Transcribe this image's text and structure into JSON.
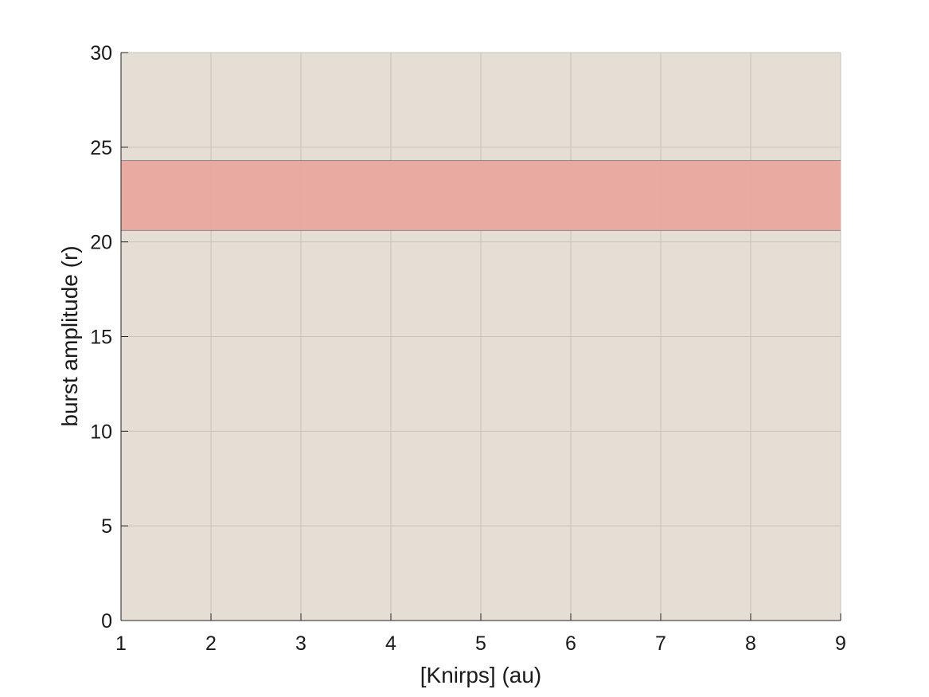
{
  "chart_data": {
    "type": "area",
    "title": "",
    "xlabel": "[Knirps] (au)",
    "ylabel": "burst amplitude (r)",
    "xlim": [
      1,
      9
    ],
    "ylim": [
      0,
      30
    ],
    "x_ticks": [
      1,
      2,
      3,
      4,
      5,
      6,
      7,
      8,
      9
    ],
    "y_ticks": [
      0,
      5,
      10,
      15,
      20,
      25,
      30
    ],
    "grid": true,
    "background_color": "#e4ded4",
    "bands": [
      {
        "y_low": 20.6,
        "y_high": 24.3,
        "x_range": [
          1,
          9
        ],
        "color": "#e9a89e"
      }
    ]
  }
}
